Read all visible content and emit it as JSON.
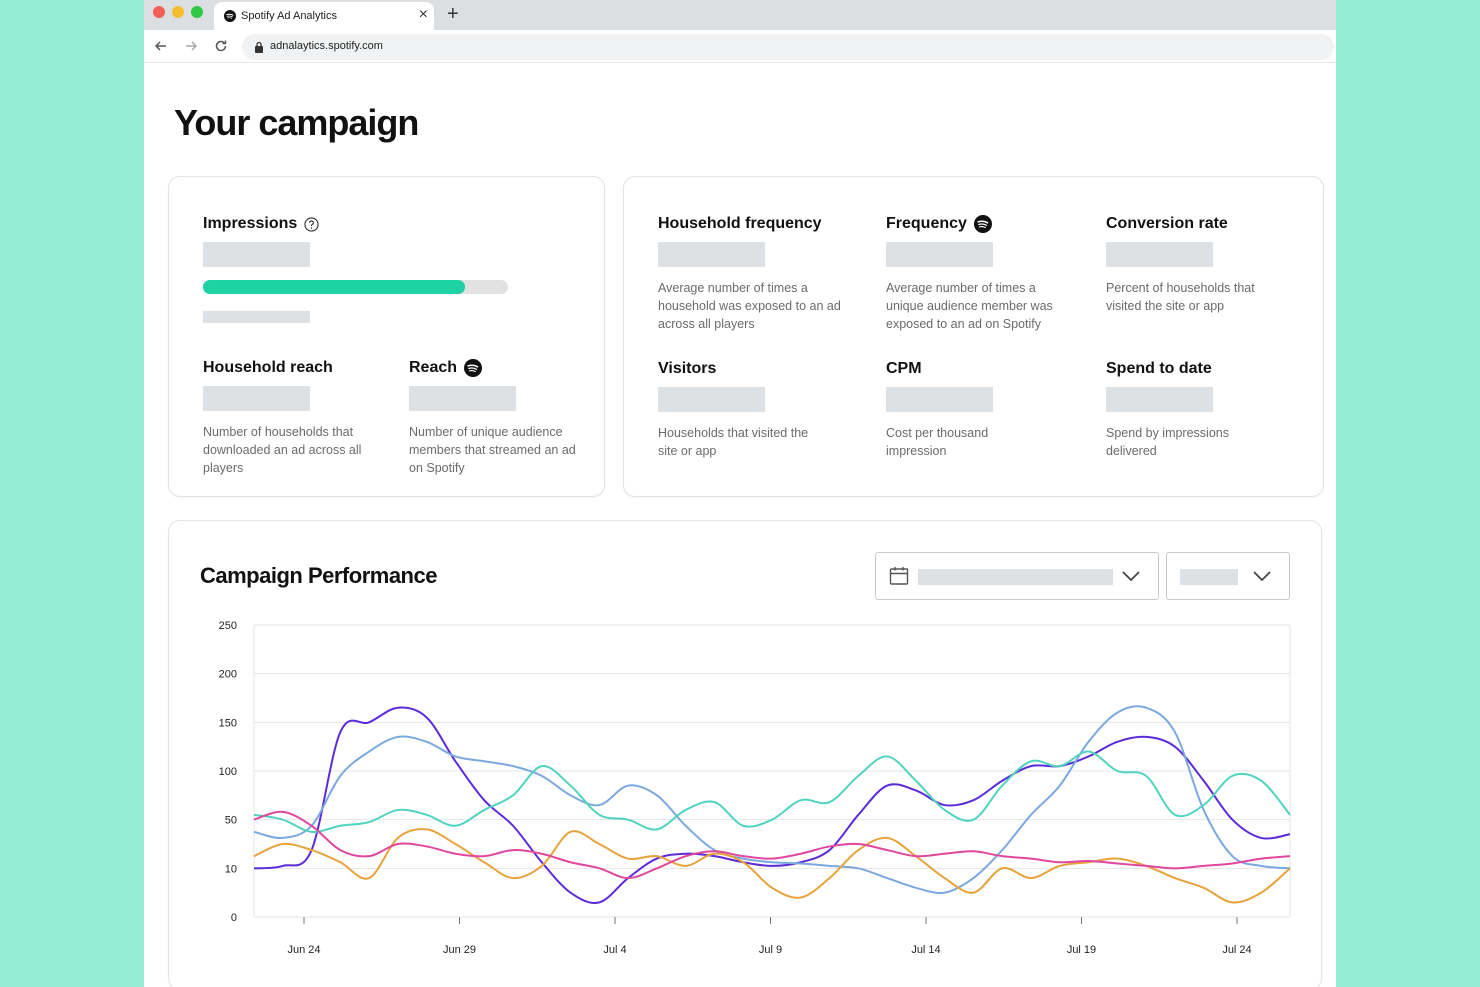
{
  "browser": {
    "tab_title": "Spotify Ad Analytics",
    "url": "adnalaytics.spotify.com",
    "close_glyph": "×",
    "new_tab_glyph": "+"
  },
  "page": {
    "title": "Your campaign"
  },
  "summary": {
    "impressions": {
      "label": "Impressions",
      "progress": 0.86
    },
    "household_reach": {
      "label": "Household reach",
      "desc": "Number of households that downloaded an ad across all players"
    },
    "reach": {
      "label": "Reach",
      "desc": "Number of unique audience members that streamed an ad on Spotify"
    }
  },
  "metrics": {
    "household_frequency": {
      "label": "Household frequency",
      "desc": "Average number of times a household was exposed to an ad across all players"
    },
    "frequency": {
      "label": "Frequency",
      "desc": "Average number of times a unique audience member was exposed to an ad on Spotify"
    },
    "conversion_rate": {
      "label": "Conversion rate",
      "desc": "Percent of households that visited the site or app"
    },
    "visitors": {
      "label": "Visitors",
      "desc": "Households that visited the site or app"
    },
    "cpm": {
      "label": "CPM",
      "desc": "Cost per thousand impression"
    },
    "spend_to_date": {
      "label": "Spend to date",
      "desc": "Spend by impressions delivered"
    }
  },
  "performance": {
    "title": "Campaign Performance"
  },
  "colors": {
    "accent_green": "#1dd3a3",
    "series": [
      "#5b2bd9",
      "#7aa8e0",
      "#4fd4bf",
      "#e8a23a",
      "#e0479e"
    ]
  },
  "icons": [
    "spotify-icon",
    "close-icon",
    "plus-icon",
    "back-arrow-icon",
    "forward-arrow-icon",
    "reload-icon",
    "lock-icon",
    "help-icon",
    "calendar-icon",
    "chevron-down-icon"
  ],
  "chart_data": {
    "type": "line",
    "title": "",
    "xlabel": "",
    "ylabel": "",
    "y_ticks": [
      "0",
      "10",
      "50",
      "100",
      "150",
      "200",
      "250"
    ],
    "x_ticks": [
      "Jun 24",
      "Jun 29",
      "Jul 4",
      "Jul 9",
      "Jul 14",
      "Jul 19",
      "Jul 24"
    ],
    "grid": "horizontal",
    "legend": "none",
    "series": [
      {
        "points": [
          [
            0,
            10
          ],
          [
            1,
            12
          ],
          [
            2,
            25
          ],
          [
            3,
            140
          ],
          [
            4,
            150
          ],
          [
            5,
            165
          ],
          [
            6,
            155
          ],
          [
            7,
            110
          ],
          [
            8,
            70
          ],
          [
            9,
            45
          ],
          [
            10,
            15
          ],
          [
            11,
            5
          ],
          [
            12,
            3
          ],
          [
            13,
            8
          ],
          [
            14,
            18
          ],
          [
            15,
            22
          ],
          [
            16,
            20
          ],
          [
            17,
            15
          ],
          [
            18,
            12
          ],
          [
            19,
            15
          ],
          [
            20,
            25
          ],
          [
            21,
            55
          ],
          [
            22,
            85
          ],
          [
            23,
            80
          ],
          [
            24,
            65
          ],
          [
            25,
            70
          ],
          [
            26,
            90
          ],
          [
            27,
            105
          ],
          [
            28,
            105
          ],
          [
            29,
            115
          ],
          [
            30,
            130
          ],
          [
            31,
            135
          ],
          [
            32,
            125
          ],
          [
            33,
            90
          ],
          [
            34,
            50
          ],
          [
            35,
            35
          ],
          [
            36,
            38
          ]
        ]
      },
      {
        "points": [
          [
            0,
            40
          ],
          [
            1,
            35
          ],
          [
            2,
            45
          ],
          [
            3,
            95
          ],
          [
            4,
            120
          ],
          [
            5,
            135
          ],
          [
            6,
            130
          ],
          [
            7,
            115
          ],
          [
            8,
            110
          ],
          [
            9,
            105
          ],
          [
            10,
            95
          ],
          [
            11,
            75
          ],
          [
            12,
            65
          ],
          [
            13,
            85
          ],
          [
            14,
            75
          ],
          [
            15,
            45
          ],
          [
            16,
            25
          ],
          [
            17,
            18
          ],
          [
            18,
            15
          ],
          [
            19,
            14
          ],
          [
            20,
            12
          ],
          [
            21,
            10
          ],
          [
            22,
            8
          ],
          [
            23,
            6
          ],
          [
            24,
            5
          ],
          [
            25,
            8
          ],
          [
            26,
            25
          ],
          [
            27,
            55
          ],
          [
            28,
            85
          ],
          [
            29,
            130
          ],
          [
            30,
            160
          ],
          [
            31,
            165
          ],
          [
            32,
            140
          ],
          [
            33,
            60
          ],
          [
            34,
            20
          ],
          [
            35,
            12
          ],
          [
            36,
            10
          ]
        ]
      },
      {
        "points": [
          [
            0,
            55
          ],
          [
            1,
            50
          ],
          [
            2,
            40
          ],
          [
            3,
            45
          ],
          [
            4,
            48
          ],
          [
            5,
            60
          ],
          [
            6,
            55
          ],
          [
            7,
            45
          ],
          [
            8,
            60
          ],
          [
            9,
            75
          ],
          [
            10,
            105
          ],
          [
            11,
            85
          ],
          [
            12,
            55
          ],
          [
            13,
            50
          ],
          [
            14,
            42
          ],
          [
            15,
            60
          ],
          [
            16,
            68
          ],
          [
            17,
            45
          ],
          [
            18,
            50
          ],
          [
            19,
            70
          ],
          [
            20,
            68
          ],
          [
            21,
            95
          ],
          [
            22,
            115
          ],
          [
            23,
            90
          ],
          [
            24,
            60
          ],
          [
            25,
            50
          ],
          [
            26,
            85
          ],
          [
            27,
            110
          ],
          [
            28,
            105
          ],
          [
            29,
            120
          ],
          [
            30,
            100
          ],
          [
            31,
            95
          ],
          [
            32,
            55
          ],
          [
            33,
            65
          ],
          [
            34,
            95
          ],
          [
            35,
            90
          ],
          [
            36,
            55
          ]
        ]
      },
      {
        "points": [
          [
            0,
            20
          ],
          [
            1,
            30
          ],
          [
            2,
            25
          ],
          [
            3,
            15
          ],
          [
            4,
            8
          ],
          [
            5,
            35
          ],
          [
            6,
            42
          ],
          [
            7,
            30
          ],
          [
            8,
            15
          ],
          [
            9,
            8
          ],
          [
            10,
            12
          ],
          [
            11,
            40
          ],
          [
            12,
            30
          ],
          [
            13,
            18
          ],
          [
            14,
            20
          ],
          [
            15,
            12
          ],
          [
            16,
            22
          ],
          [
            17,
            15
          ],
          [
            18,
            6
          ],
          [
            19,
            4
          ],
          [
            20,
            8
          ],
          [
            21,
            25
          ],
          [
            22,
            35
          ],
          [
            23,
            20
          ],
          [
            24,
            8
          ],
          [
            25,
            5
          ],
          [
            26,
            10
          ],
          [
            27,
            8
          ],
          [
            28,
            12
          ],
          [
            29,
            15
          ],
          [
            30,
            18
          ],
          [
            31,
            12
          ],
          [
            32,
            8
          ],
          [
            33,
            6
          ],
          [
            34,
            3
          ],
          [
            35,
            5
          ],
          [
            36,
            10
          ]
        ]
      },
      {
        "points": [
          [
            0,
            50
          ],
          [
            1,
            58
          ],
          [
            2,
            45
          ],
          [
            3,
            25
          ],
          [
            4,
            20
          ],
          [
            5,
            30
          ],
          [
            6,
            28
          ],
          [
            7,
            22
          ],
          [
            8,
            20
          ],
          [
            9,
            25
          ],
          [
            10,
            22
          ],
          [
            11,
            15
          ],
          [
            12,
            10
          ],
          [
            13,
            8
          ],
          [
            14,
            10
          ],
          [
            15,
            20
          ],
          [
            16,
            24
          ],
          [
            17,
            20
          ],
          [
            18,
            18
          ],
          [
            19,
            22
          ],
          [
            20,
            28
          ],
          [
            21,
            30
          ],
          [
            22,
            25
          ],
          [
            23,
            20
          ],
          [
            24,
            22
          ],
          [
            25,
            24
          ],
          [
            26,
            20
          ],
          [
            27,
            18
          ],
          [
            28,
            15
          ],
          [
            29,
            16
          ],
          [
            30,
            14
          ],
          [
            31,
            12
          ],
          [
            32,
            10
          ],
          [
            33,
            12
          ],
          [
            34,
            14
          ],
          [
            35,
            18
          ],
          [
            36,
            20
          ]
        ]
      }
    ]
  }
}
